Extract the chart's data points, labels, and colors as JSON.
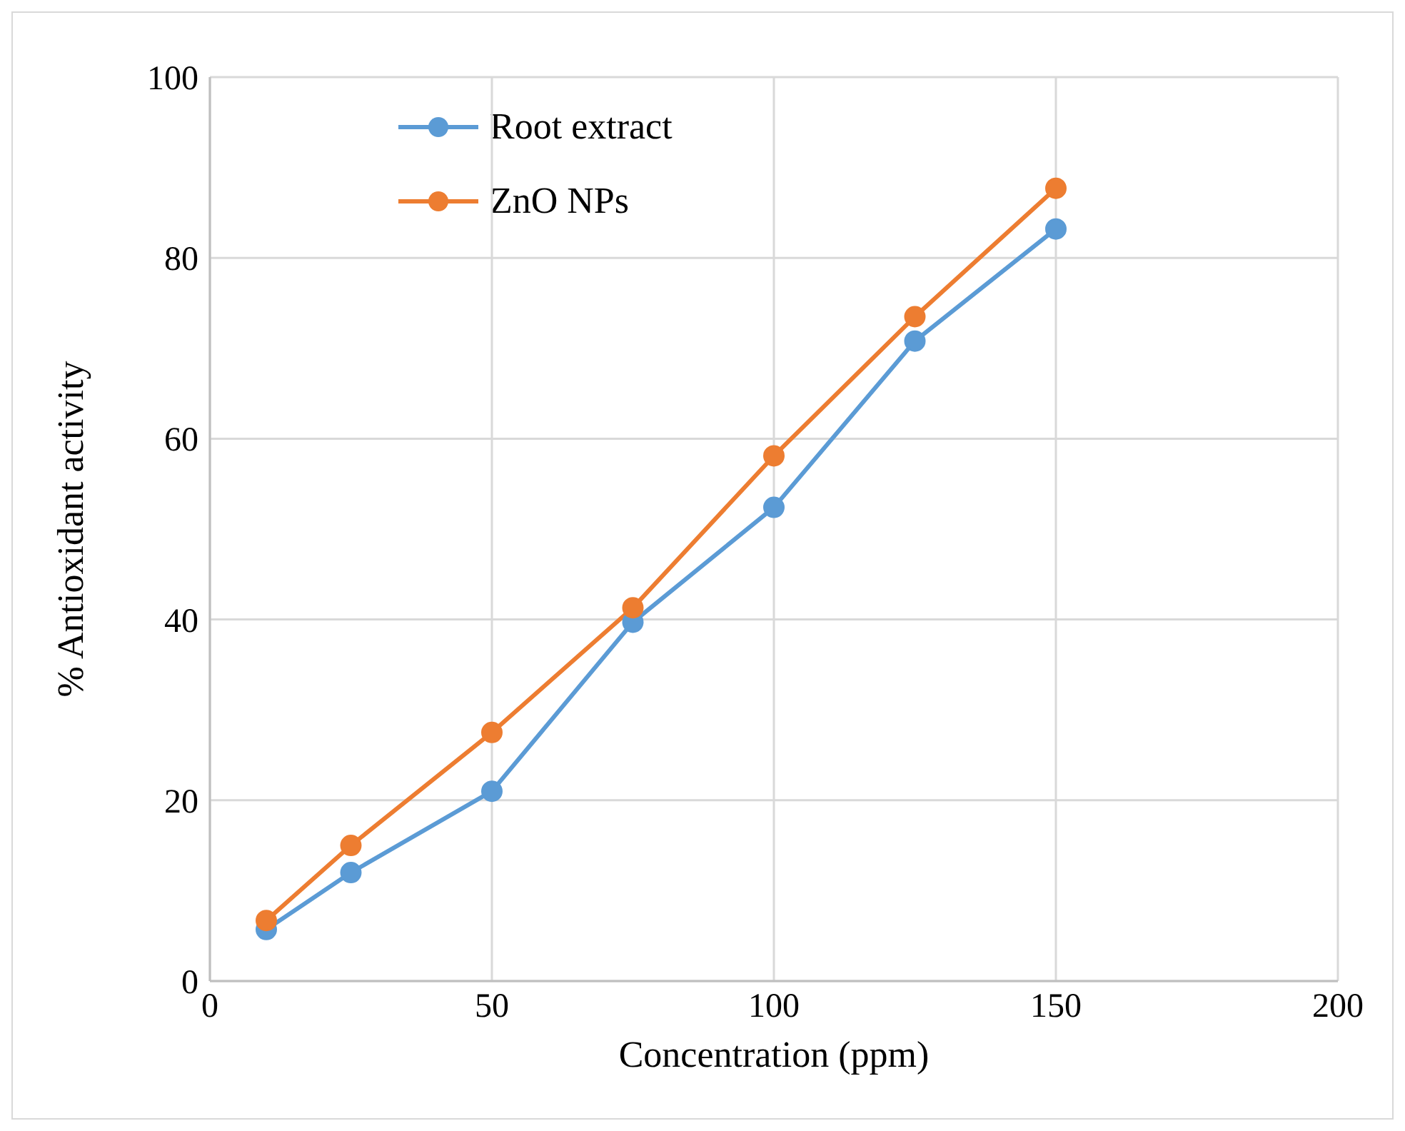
{
  "chart_data": {
    "type": "line",
    "xlabel": "Concentration (ppm)",
    "ylabel": "% Antioxidant activity",
    "x": [
      10,
      25,
      50,
      75,
      100,
      125,
      150
    ],
    "series": [
      {
        "name": "Root extract",
        "color": "#5b9bd5",
        "values": [
          5.7,
          12,
          21,
          39.7,
          52.4,
          70.8,
          83.2
        ]
      },
      {
        "name": "ZnO NPs",
        "color": "#ed7d31",
        "values": [
          6.7,
          15,
          27.5,
          41.3,
          58.1,
          73.5,
          87.7
        ]
      }
    ],
    "xlim": [
      0,
      200
    ],
    "xticks": [
      0,
      50,
      100,
      150,
      200
    ],
    "ylim": [
      0,
      100
    ],
    "yticks": [
      0,
      20,
      40,
      60,
      80,
      100
    ],
    "grid": true,
    "legend": "top left",
    "marker": "circle"
  }
}
